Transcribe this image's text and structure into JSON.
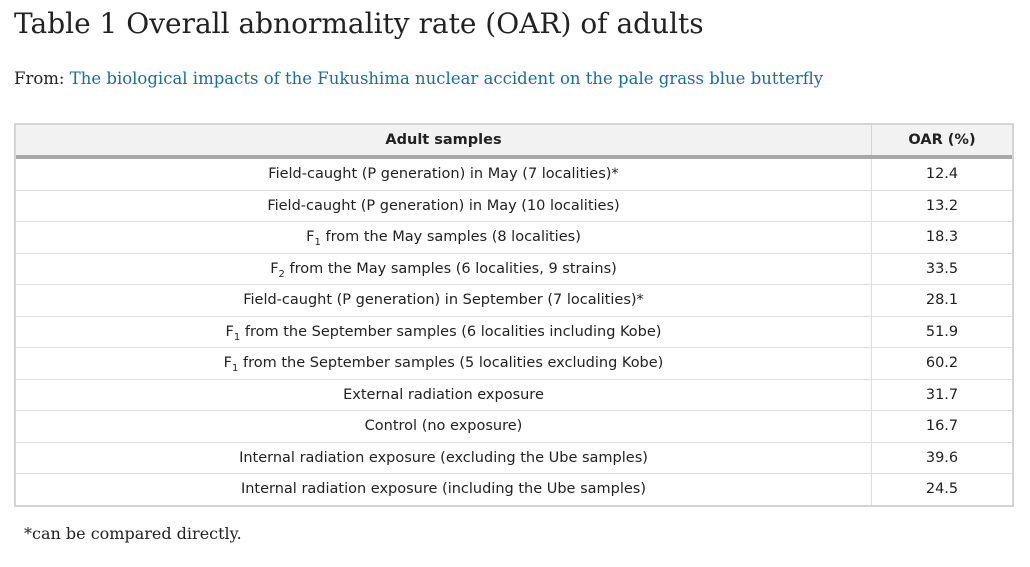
{
  "title": "Table 1 Overall abnormality rate (OAR) of adults",
  "from": {
    "prefix": "From:",
    "link_text": "The biological impacts of the Fukushima nuclear accident on the pale grass blue butterfly"
  },
  "table": {
    "headers": {
      "samples": "Adult samples",
      "oar": "OAR (%)"
    },
    "rows": [
      {
        "pre": "Field-caught (P generation) in May (7 localities)*",
        "sub": "",
        "post": "",
        "oar": "12.4"
      },
      {
        "pre": "Field-caught (P generation) in May (10 localities)",
        "sub": "",
        "post": "",
        "oar": "13.2"
      },
      {
        "pre": "F",
        "sub": "1",
        "post": " from the May samples (8 localities)",
        "oar": "18.3"
      },
      {
        "pre": "F",
        "sub": "2",
        "post": " from the May samples (6 localities, 9 strains)",
        "oar": "33.5"
      },
      {
        "pre": "Field-caught (P generation) in September (7 localities)*",
        "sub": "",
        "post": "",
        "oar": "28.1"
      },
      {
        "pre": "F",
        "sub": "1",
        "post": " from the September samples (6 localities including Kobe)",
        "oar": "51.9"
      },
      {
        "pre": "F",
        "sub": "1",
        "post": " from the September samples (5 localities excluding Kobe)",
        "oar": "60.2"
      },
      {
        "pre": "External radiation exposure",
        "sub": "",
        "post": "",
        "oar": "31.7"
      },
      {
        "pre": "Control (no exposure)",
        "sub": "",
        "post": "",
        "oar": "16.7"
      },
      {
        "pre": "Internal radiation exposure (excluding the Ube samples)",
        "sub": "",
        "post": "",
        "oar": "39.6"
      },
      {
        "pre": "Internal radiation exposure (including the Ube samples)",
        "sub": "",
        "post": "",
        "oar": "24.5"
      }
    ]
  },
  "footnote": "*can be compared directly.",
  "colors": {
    "link": "#1a6d96",
    "header_bg": "#f2f2f2",
    "header_rule": "#a8a8a8",
    "border": "#d4d4d4"
  }
}
